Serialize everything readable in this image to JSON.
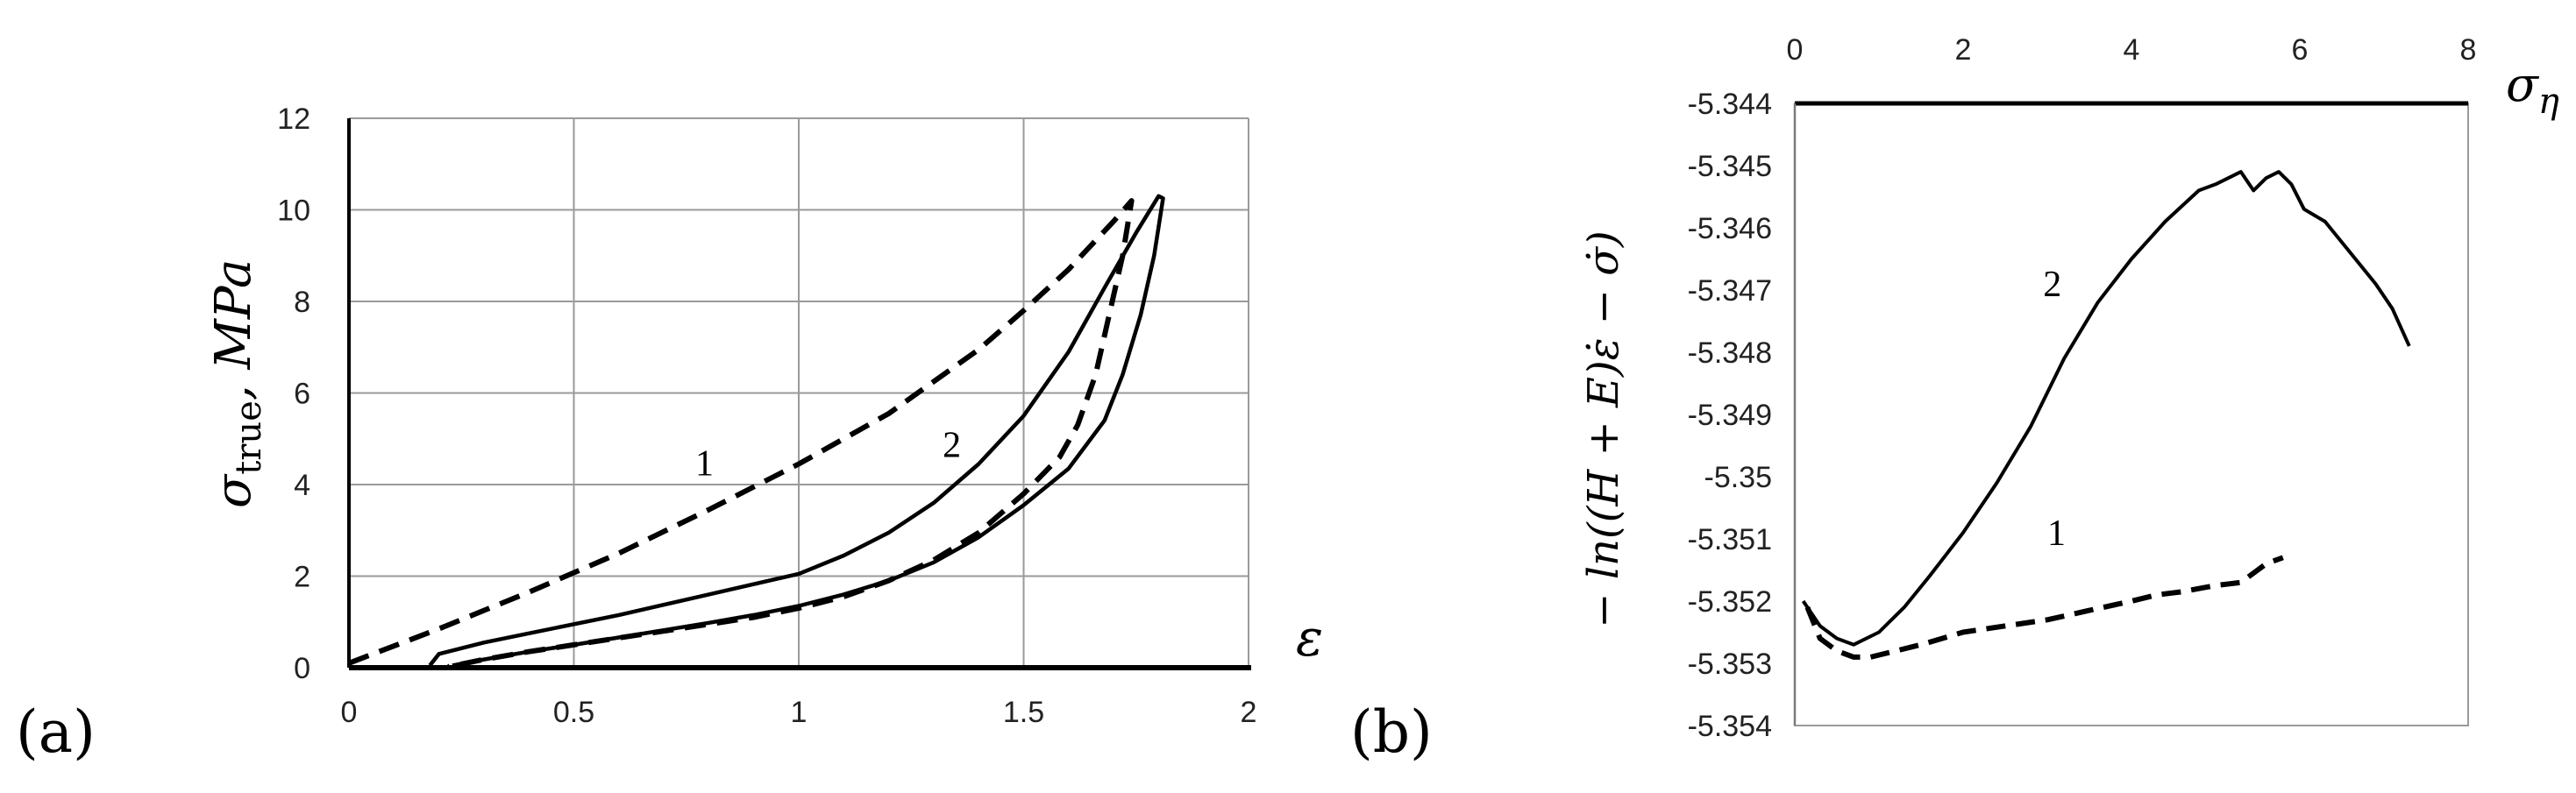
{
  "chart_data": [
    {
      "type": "line",
      "panel_label": "(a)",
      "xlabel": "ε",
      "ylabel_parts": {
        "base": "σ",
        "sub": "true",
        "suffix": ", MPa"
      },
      "xlim": [
        0,
        2
      ],
      "ylim": [
        0,
        12
      ],
      "xticks": [
        0,
        0.5,
        1,
        1.5,
        2
      ],
      "xtick_labels": [
        "0",
        "0.5",
        "1",
        "1.5",
        "2"
      ],
      "yticks": [
        0,
        2,
        4,
        6,
        8,
        10,
        12
      ],
      "ytick_labels": [
        "0",
        "2",
        "4",
        "6",
        "8",
        "10",
        "12"
      ],
      "grid": true,
      "series": [
        {
          "name": "1",
          "style": "dashed",
          "x": [
            0.0,
            0.2,
            0.4,
            0.6,
            0.8,
            1.0,
            1.2,
            1.4,
            1.5,
            1.6,
            1.7,
            1.74,
            1.72,
            1.69,
            1.66,
            1.62,
            1.58,
            1.5,
            1.4,
            1.3,
            1.2,
            1.1,
            1.0,
            0.9,
            0.8,
            0.7,
            0.6,
            0.5,
            0.4,
            0.3,
            0.22
          ],
          "y": [
            0.1,
            0.85,
            1.65,
            2.5,
            3.45,
            4.45,
            5.55,
            6.95,
            7.8,
            8.7,
            9.75,
            10.2,
            9.0,
            7.7,
            6.4,
            5.3,
            4.6,
            3.8,
            2.95,
            2.35,
            1.9,
            1.55,
            1.3,
            1.1,
            0.95,
            0.8,
            0.65,
            0.5,
            0.35,
            0.18,
            0.02
          ]
        },
        {
          "name": "2",
          "style": "solid",
          "x": [
            0.18,
            0.2,
            0.3,
            0.4,
            0.6,
            0.8,
            1.0,
            1.1,
            1.2,
            1.3,
            1.4,
            1.5,
            1.6,
            1.68,
            1.75,
            1.8,
            1.81,
            1.79,
            1.76,
            1.72,
            1.68,
            1.6,
            1.5,
            1.4,
            1.3,
            1.2,
            1.1,
            1.0,
            0.9,
            0.8,
            0.7,
            0.6,
            0.5,
            0.4,
            0.3,
            0.23
          ],
          "y": [
            0.05,
            0.3,
            0.55,
            0.75,
            1.15,
            1.6,
            2.05,
            2.45,
            2.95,
            3.6,
            4.45,
            5.5,
            6.9,
            8.3,
            9.5,
            10.3,
            10.25,
            9.0,
            7.7,
            6.4,
            5.4,
            4.35,
            3.55,
            2.85,
            2.3,
            1.9,
            1.6,
            1.35,
            1.15,
            0.98,
            0.82,
            0.66,
            0.5,
            0.35,
            0.18,
            0.05
          ]
        }
      ],
      "annotations": [
        {
          "text": "1",
          "x": 0.77,
          "y": 4.2
        },
        {
          "text": "2",
          "x": 1.32,
          "y": 4.6
        }
      ]
    },
    {
      "type": "line",
      "panel_label": "(b)",
      "xlabel_parts": {
        "base": "σ",
        "sub": "η"
      },
      "ylabel": "− ln((H + E)ε̇ − σ̇)",
      "xlim": [
        0,
        8
      ],
      "ylim": [
        -5.354,
        -5.344
      ],
      "xticks": [
        0,
        2,
        4,
        6,
        8
      ],
      "xtick_labels": [
        "0",
        "2",
        "4",
        "6",
        "8"
      ],
      "yticks": [
        -5.344,
        -5.345,
        -5.346,
        -5.347,
        -5.348,
        -5.349,
        -5.35,
        -5.351,
        -5.352,
        -5.353,
        -5.354
      ],
      "ytick_labels": [
        "-5.344",
        "-5.345",
        "-5.346",
        "-5.347",
        "-5.348",
        "-5.349",
        "-5.35",
        "-5.351",
        "-5.352",
        "-5.353",
        "-5.354"
      ],
      "x_axis_position": "top",
      "grid": false,
      "series": [
        {
          "name": "1",
          "style": "dashed",
          "x": [
            0.15,
            0.3,
            0.5,
            0.7,
            0.9,
            1.2,
            1.5,
            2.0,
            2.5,
            3.0,
            3.5,
            4.0,
            4.3,
            4.6,
            5.0,
            5.3,
            5.6,
            5.8
          ],
          "y": [
            -5.3521,
            -5.3526,
            -5.3528,
            -5.3529,
            -5.3529,
            -5.3528,
            -5.3527,
            -5.3525,
            -5.3524,
            -5.3523,
            -5.35215,
            -5.352,
            -5.3519,
            -5.35185,
            -5.35175,
            -5.3517,
            -5.3514,
            -5.3513
          ]
        },
        {
          "name": "2",
          "style": "solid",
          "x": [
            0.1,
            0.3,
            0.5,
            0.7,
            1.0,
            1.3,
            1.6,
            2.0,
            2.4,
            2.8,
            3.2,
            3.6,
            4.0,
            4.4,
            4.8,
            5.0,
            5.3,
            5.45,
            5.6,
            5.75,
            5.9,
            6.05,
            6.3,
            6.6,
            6.9,
            7.1,
            7.3
          ],
          "y": [
            -5.352,
            -5.3524,
            -5.3526,
            -5.3527,
            -5.3525,
            -5.3521,
            -5.3516,
            -5.3509,
            -5.3501,
            -5.3492,
            -5.3481,
            -5.3472,
            -5.3465,
            -5.3459,
            -5.3454,
            -5.3453,
            -5.3451,
            -5.3454,
            -5.3452,
            -5.3451,
            -5.3453,
            -5.3457,
            -5.3459,
            -5.3464,
            -5.3469,
            -5.3473,
            -5.3479
          ]
        }
      ],
      "annotations": [
        {
          "text": "1",
          "x": 3.0,
          "y": -5.3511
        },
        {
          "text": "2",
          "x": 2.95,
          "y": -5.3471
        }
      ]
    }
  ]
}
